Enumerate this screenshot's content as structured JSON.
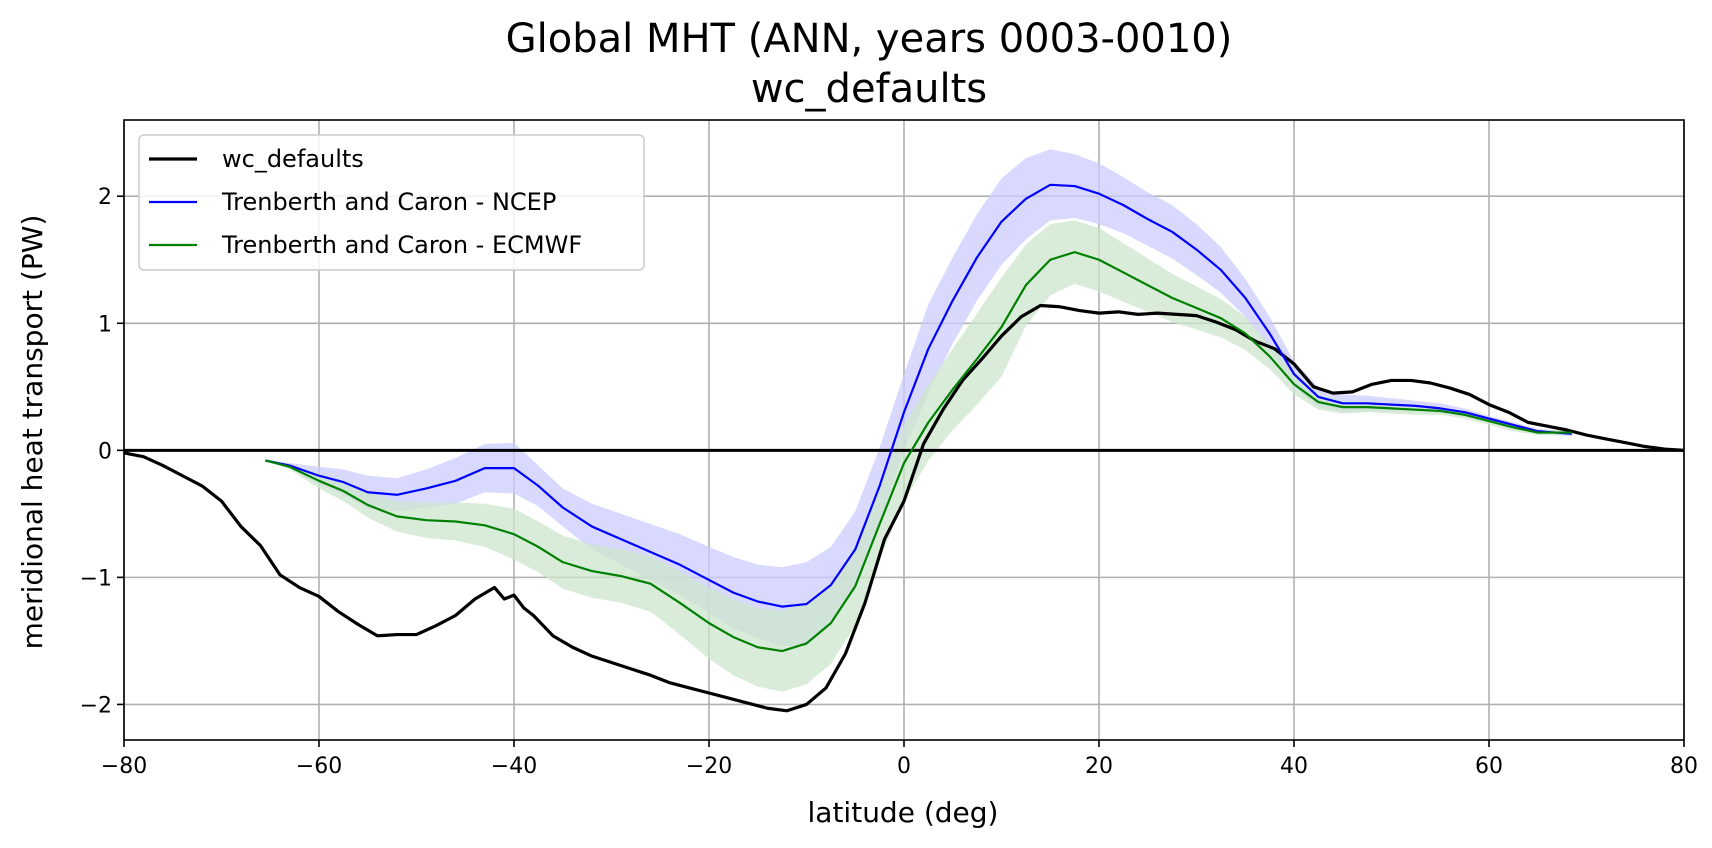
{
  "chart_data": {
    "type": "line",
    "title": "Global MHT (ANN, years 0003-0010)",
    "subtitle": "wc_defaults",
    "xlabel": "latitude (deg)",
    "ylabel": "meridional heat transport (PW)",
    "xlim": [
      -80,
      80
    ],
    "ylim": [
      -2.28,
      2.6
    ],
    "xticks": [
      -80,
      -60,
      -40,
      -20,
      0,
      20,
      40,
      60,
      80
    ],
    "xtick_labels": [
      "−80",
      "−60",
      "−40",
      "−20",
      "0",
      "20",
      "40",
      "60",
      "80"
    ],
    "yticks": [
      -2,
      -1,
      0,
      1,
      2
    ],
    "ytick_labels": [
      "−2",
      "−1",
      "0",
      "1",
      "2"
    ],
    "grid": true,
    "legend_position": "top-left",
    "zero_line": true,
    "series": [
      {
        "name": "wc_defaults",
        "color": "#000000",
        "x": [
          -80,
          -78,
          -76,
          -74,
          -72,
          -70,
          -68,
          -66,
          -64,
          -62,
          -60,
          -58,
          -56,
          -54,
          -52,
          -50,
          -48,
          -46,
          -44,
          -42,
          -41,
          -40,
          -39,
          -38,
          -36,
          -34,
          -32,
          -30,
          -28,
          -26,
          -24,
          -22,
          -20,
          -18,
          -16,
          -14,
          -12,
          -10,
          -8,
          -6,
          -4,
          -2,
          0,
          2,
          4,
          6,
          8,
          10,
          12,
          14,
          16,
          18,
          20,
          22,
          24,
          26,
          28,
          30,
          32,
          34,
          36,
          38,
          40,
          42,
          44,
          46,
          48,
          50,
          52,
          54,
          56,
          58,
          60,
          62,
          64,
          66,
          68,
          70,
          72,
          74,
          76,
          78,
          80
        ],
        "values": [
          -0.02,
          -0.05,
          -0.12,
          -0.2,
          -0.28,
          -0.4,
          -0.6,
          -0.75,
          -0.98,
          -1.08,
          -1.15,
          -1.27,
          -1.37,
          -1.46,
          -1.45,
          -1.45,
          -1.38,
          -1.3,
          -1.17,
          -1.08,
          -1.17,
          -1.14,
          -1.24,
          -1.3,
          -1.46,
          -1.55,
          -1.62,
          -1.67,
          -1.72,
          -1.77,
          -1.83,
          -1.87,
          -1.91,
          -1.95,
          -1.99,
          -2.03,
          -2.05,
          -2.0,
          -1.87,
          -1.6,
          -1.2,
          -0.7,
          -0.4,
          0.05,
          0.32,
          0.55,
          0.72,
          0.9,
          1.05,
          1.14,
          1.13,
          1.1,
          1.08,
          1.09,
          1.07,
          1.08,
          1.07,
          1.06,
          1.01,
          0.95,
          0.86,
          0.8,
          0.68,
          0.5,
          0.45,
          0.46,
          0.52,
          0.55,
          0.55,
          0.53,
          0.49,
          0.44,
          0.36,
          0.3,
          0.22,
          0.19,
          0.16,
          0.12,
          0.09,
          0.06,
          0.03,
          0.01,
          0.0
        ]
      },
      {
        "name": "Trenberth and Caron - NCEP",
        "color": "#0000ff",
        "band_color": "#ccccff",
        "x": [
          -65.5,
          -63,
          -60,
          -57.5,
          -55,
          -52,
          -49,
          -46,
          -43,
          -40,
          -37.5,
          -35,
          -32,
          -29,
          -26,
          -23,
          -20,
          -17.5,
          -15,
          -12.5,
          -10,
          -7.5,
          -5,
          -2.5,
          0,
          2.5,
          5,
          7.5,
          10,
          12.5,
          15,
          17.5,
          20,
          22.5,
          25,
          27.5,
          30,
          32.5,
          35,
          37.5,
          40,
          42.5,
          45,
          47.5,
          50,
          52.5,
          55,
          57.5,
          60,
          62.5,
          65,
          68.5
        ],
        "values": [
          -0.08,
          -0.12,
          -0.2,
          -0.25,
          -0.33,
          -0.35,
          -0.3,
          -0.24,
          -0.14,
          -0.14,
          -0.28,
          -0.45,
          -0.6,
          -0.7,
          -0.8,
          -0.9,
          -1.02,
          -1.12,
          -1.19,
          -1.23,
          -1.21,
          -1.06,
          -0.78,
          -0.28,
          0.3,
          0.8,
          1.18,
          1.52,
          1.8,
          1.98,
          2.09,
          2.08,
          2.02,
          1.93,
          1.82,
          1.72,
          1.58,
          1.42,
          1.2,
          0.92,
          0.6,
          0.42,
          0.37,
          0.37,
          0.36,
          0.35,
          0.33,
          0.3,
          0.25,
          0.2,
          0.15,
          0.13
        ],
        "band_upper": [
          -0.08,
          -0.1,
          -0.13,
          -0.15,
          -0.2,
          -0.22,
          -0.15,
          -0.06,
          0.05,
          0.06,
          -0.12,
          -0.3,
          -0.42,
          -0.5,
          -0.58,
          -0.66,
          -0.76,
          -0.84,
          -0.9,
          -0.92,
          -0.88,
          -0.76,
          -0.48,
          0.02,
          0.6,
          1.15,
          1.52,
          1.86,
          2.14,
          2.3,
          2.37,
          2.33,
          2.26,
          2.15,
          2.03,
          1.93,
          1.78,
          1.6,
          1.35,
          1.05,
          0.7,
          0.5,
          0.44,
          0.43,
          0.41,
          0.39,
          0.37,
          0.33,
          0.27,
          0.22,
          0.17,
          0.15
        ],
        "band_lower": [
          -0.08,
          -0.14,
          -0.27,
          -0.35,
          -0.46,
          -0.48,
          -0.45,
          -0.42,
          -0.33,
          -0.34,
          -0.44,
          -0.6,
          -0.78,
          -0.9,
          -1.02,
          -1.14,
          -1.28,
          -1.4,
          -1.48,
          -1.54,
          -1.54,
          -1.36,
          -1.08,
          -0.58,
          0.0,
          0.45,
          0.84,
          1.18,
          1.46,
          1.66,
          1.81,
          1.83,
          1.78,
          1.71,
          1.61,
          1.51,
          1.38,
          1.24,
          1.05,
          0.79,
          0.5,
          0.34,
          0.3,
          0.31,
          0.31,
          0.31,
          0.29,
          0.27,
          0.23,
          0.18,
          0.13,
          0.11
        ]
      },
      {
        "name": "Trenberth and Caron - ECMWF",
        "color": "#008000",
        "band_color": "#cce5cc",
        "x": [
          -65.5,
          -63,
          -60,
          -57.5,
          -55,
          -52,
          -49,
          -46,
          -43,
          -40,
          -37.5,
          -35,
          -32,
          -29,
          -26,
          -23,
          -20,
          -17.5,
          -15,
          -12.5,
          -10,
          -7.5,
          -5,
          -2.5,
          0,
          2.5,
          5,
          7.5,
          10,
          12.5,
          15,
          17.5,
          20,
          22.5,
          25,
          27.5,
          30,
          32.5,
          35,
          37.5,
          40,
          42.5,
          45,
          47.5,
          50,
          52.5,
          55,
          57.5,
          60,
          62.5,
          65,
          68.5
        ],
        "values": [
          -0.08,
          -0.13,
          -0.24,
          -0.32,
          -0.43,
          -0.52,
          -0.55,
          -0.56,
          -0.59,
          -0.66,
          -0.76,
          -0.88,
          -0.95,
          -0.99,
          -1.05,
          -1.2,
          -1.36,
          -1.47,
          -1.55,
          -1.58,
          -1.52,
          -1.36,
          -1.07,
          -0.58,
          -0.1,
          0.22,
          0.48,
          0.72,
          0.97,
          1.3,
          1.5,
          1.56,
          1.5,
          1.4,
          1.3,
          1.2,
          1.12,
          1.04,
          0.92,
          0.74,
          0.52,
          0.38,
          0.34,
          0.34,
          0.33,
          0.32,
          0.31,
          0.28,
          0.23,
          0.18,
          0.14,
          0.14
        ],
        "band_upper": [
          -0.08,
          -0.11,
          -0.18,
          -0.24,
          -0.33,
          -0.4,
          -0.41,
          -0.41,
          -0.42,
          -0.46,
          -0.56,
          -0.67,
          -0.74,
          -0.78,
          -0.83,
          -0.95,
          -1.08,
          -1.17,
          -1.24,
          -1.26,
          -1.2,
          -1.04,
          -0.76,
          -0.3,
          0.2,
          0.52,
          0.8,
          1.08,
          1.36,
          1.62,
          1.78,
          1.81,
          1.75,
          1.63,
          1.51,
          1.39,
          1.29,
          1.19,
          1.05,
          0.84,
          0.6,
          0.44,
          0.39,
          0.38,
          0.37,
          0.36,
          0.34,
          0.31,
          0.26,
          0.21,
          0.16,
          0.16
        ],
        "band_lower": [
          -0.08,
          -0.15,
          -0.3,
          -0.4,
          -0.53,
          -0.64,
          -0.69,
          -0.71,
          -0.76,
          -0.86,
          -0.96,
          -1.09,
          -1.16,
          -1.2,
          -1.27,
          -1.45,
          -1.64,
          -1.77,
          -1.86,
          -1.9,
          -1.84,
          -1.68,
          -1.38,
          -0.86,
          -0.4,
          -0.08,
          0.16,
          0.36,
          0.58,
          0.98,
          1.22,
          1.31,
          1.25,
          1.17,
          1.09,
          1.01,
          0.95,
          0.89,
          0.79,
          0.64,
          0.44,
          0.32,
          0.29,
          0.3,
          0.29,
          0.28,
          0.28,
          0.25,
          0.2,
          0.15,
          0.12,
          0.12
        ]
      }
    ]
  }
}
